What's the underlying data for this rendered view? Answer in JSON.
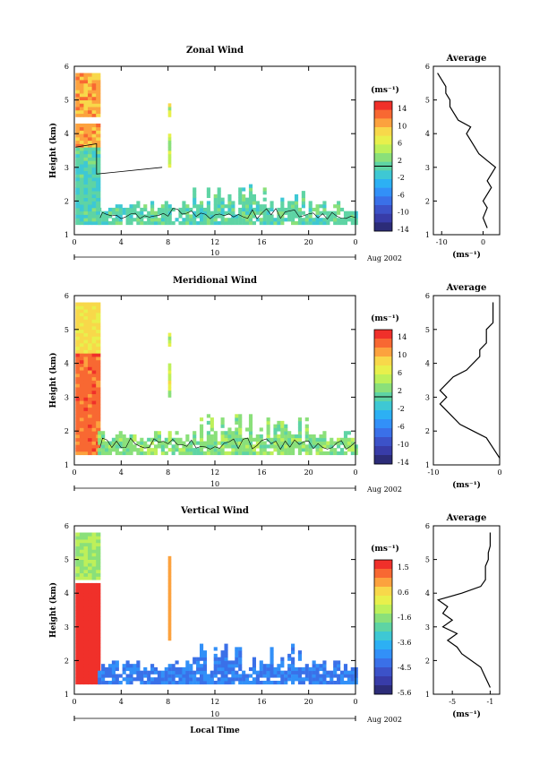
{
  "panels": [
    {
      "id": "zonal",
      "title": "Zonal Wind",
      "ylabel": "Height (km)",
      "xticks": [
        "0",
        "4",
        "8",
        "12",
        "16",
        "20",
        "0"
      ],
      "date_label": "10",
      "date_suffix": "Aug 2002",
      "cbar_unit": "(ms⁻¹)",
      "cbar_ticks": [
        "14",
        "10",
        "6",
        "2",
        "-2",
        "-6",
        "-10",
        "-14"
      ],
      "cbar_colors": [
        "#f0302a",
        "#f86832",
        "#fca23e",
        "#f8d84a",
        "#e8f04c",
        "#bef05a",
        "#8ae07a",
        "#5ed4a4",
        "#3ec8d4",
        "#2cb0f4",
        "#3290f8",
        "#3a70e8",
        "#3c52c8",
        "#383ca8",
        "#2c2c78"
      ],
      "avg_title": "Average",
      "avg_unit": "(ms⁻¹)",
      "avg_xticks": [
        "-10",
        "0"
      ]
    },
    {
      "id": "meridional",
      "title": "Meridional Wind",
      "ylabel": "Height (km)",
      "xticks": [
        "0",
        "4",
        "8",
        "12",
        "16",
        "20",
        "0"
      ],
      "date_label": "10",
      "date_suffix": "Aug 2002",
      "cbar_unit": "(ms⁻¹)",
      "cbar_ticks": [
        "14",
        "10",
        "6",
        "2",
        "-2",
        "-6",
        "-10",
        "-14"
      ],
      "cbar_colors": [
        "#f0302a",
        "#f86832",
        "#fca23e",
        "#f8d84a",
        "#e8f04c",
        "#bef05a",
        "#8ae07a",
        "#5ed4a4",
        "#3ec8d4",
        "#2cb0f4",
        "#3290f8",
        "#3a70e8",
        "#3c52c8",
        "#383ca8",
        "#2c2c78"
      ],
      "avg_title": "Average",
      "avg_unit": "(ms⁻¹)",
      "avg_xticks": [
        "-10",
        "0"
      ]
    },
    {
      "id": "vertical",
      "title": "Vertical Wind",
      "ylabel": "Height (km)",
      "xticks": [
        "0",
        "4",
        "8",
        "12",
        "16",
        "20",
        "0"
      ],
      "date_label": "10",
      "date_suffix": "Aug 2002",
      "cbar_unit": "(ms⁻¹)",
      "cbar_ticks": [
        "1.5",
        "0.6",
        "-1.6",
        "-3.6",
        "-4.5",
        "-5.6"
      ],
      "cbar_colors": [
        "#f0302a",
        "#f86832",
        "#fca23e",
        "#f8d84a",
        "#e8f04c",
        "#bef05a",
        "#8ae07a",
        "#5ed4a4",
        "#3ec8d4",
        "#2cb0f4",
        "#3290f8",
        "#3a70e8",
        "#3c52c8",
        "#383ca8",
        "#2c2c78"
      ],
      "avg_title": "Average",
      "avg_unit": "(ms⁻¹)",
      "avg_xticks": [
        "-5",
        "-1"
      ],
      "xlabel": "Local Time"
    }
  ],
  "chart_data": [
    {
      "type": "heatmap",
      "title": "Zonal Wind",
      "ylabel": "Height (km)",
      "xlim": [
        0,
        24
      ],
      "ylim": [
        1,
        6
      ],
      "x_tick_values": [
        0,
        4,
        8,
        12,
        16,
        20,
        24
      ],
      "y_tick_values": [
        1,
        2,
        3,
        4,
        5,
        6
      ],
      "colorbar": {
        "range": [
          -14,
          14
        ],
        "ticks": [
          14,
          10,
          6,
          2,
          -2,
          -6,
          -10,
          -14
        ],
        "unit": "ms-1"
      },
      "average_profile": {
        "xlim": [
          -12,
          4
        ],
        "height_km": [
          1.2,
          1.5,
          1.8,
          2.0,
          2.2,
          2.4,
          2.6,
          2.8,
          3.0,
          3.2,
          3.4,
          3.6,
          3.8,
          4.0,
          4.2,
          4.4,
          4.6,
          4.8,
          5.0,
          5.2,
          5.4,
          5.6,
          5.8
        ],
        "value": [
          1,
          0,
          1,
          0,
          1,
          2,
          1,
          2,
          3,
          1,
          -1,
          -2,
          -3,
          -4,
          -3,
          -6,
          -7,
          -8,
          -8,
          -9,
          -9,
          -10,
          -11
        ]
      }
    },
    {
      "type": "heatmap",
      "title": "Meridional Wind",
      "ylabel": "Height (km)",
      "xlim": [
        0,
        24
      ],
      "ylim": [
        1,
        6
      ],
      "x_tick_values": [
        0,
        4,
        8,
        12,
        16,
        20,
        24
      ],
      "y_tick_values": [
        1,
        2,
        3,
        4,
        5,
        6
      ],
      "colorbar": {
        "range": [
          -14,
          14
        ],
        "ticks": [
          14,
          10,
          6,
          2,
          -2,
          -6,
          -10,
          -14
        ],
        "unit": "ms-1"
      },
      "average_profile": {
        "xlim": [
          -10,
          0
        ],
        "height_km": [
          1.2,
          1.5,
          1.8,
          2.0,
          2.2,
          2.4,
          2.6,
          2.8,
          3.0,
          3.2,
          3.4,
          3.6,
          3.8,
          4.0,
          4.2,
          4.4,
          4.6,
          4.8,
          5.0,
          5.2,
          5.4,
          5.6,
          5.8
        ],
        "value": [
          0,
          -1,
          -2,
          -4,
          -6,
          -7,
          -8,
          -9,
          -8,
          -9,
          -8,
          -7,
          -5,
          -4,
          -3,
          -3,
          -2,
          -2,
          -2,
          -1,
          -1,
          -1,
          -1
        ]
      }
    },
    {
      "type": "heatmap",
      "title": "Vertical Wind",
      "ylabel": "Height (km)",
      "xlabel": "Local Time",
      "xlim": [
        0,
        24
      ],
      "ylim": [
        1,
        6
      ],
      "x_tick_values": [
        0,
        4,
        8,
        12,
        16,
        20,
        24
      ],
      "y_tick_values": [
        1,
        2,
        3,
        4,
        5,
        6
      ],
      "colorbar": {
        "range": [
          -5.6,
          1.5
        ],
        "ticks": [
          1.5,
          0.6,
          -1.6,
          -3.6,
          -4.5,
          -5.6
        ],
        "unit": "ms-1"
      },
      "average_profile": {
        "xlim": [
          -7,
          0
        ],
        "height_km": [
          1.2,
          1.5,
          1.8,
          2.0,
          2.2,
          2.4,
          2.6,
          2.8,
          3.0,
          3.2,
          3.4,
          3.6,
          3.8,
          4.0,
          4.2,
          4.4,
          4.6,
          4.8,
          5.0,
          5.2,
          5.4,
          5.6,
          5.8
        ],
        "value": [
          -1,
          -1.5,
          -2,
          -3,
          -4,
          -4.5,
          -5.5,
          -4.5,
          -6,
          -5,
          -6,
          -5.5,
          -6.5,
          -4,
          -2,
          -1.5,
          -1.5,
          -1.5,
          -1.2,
          -1.2,
          -1,
          -1,
          -1
        ]
      }
    }
  ]
}
